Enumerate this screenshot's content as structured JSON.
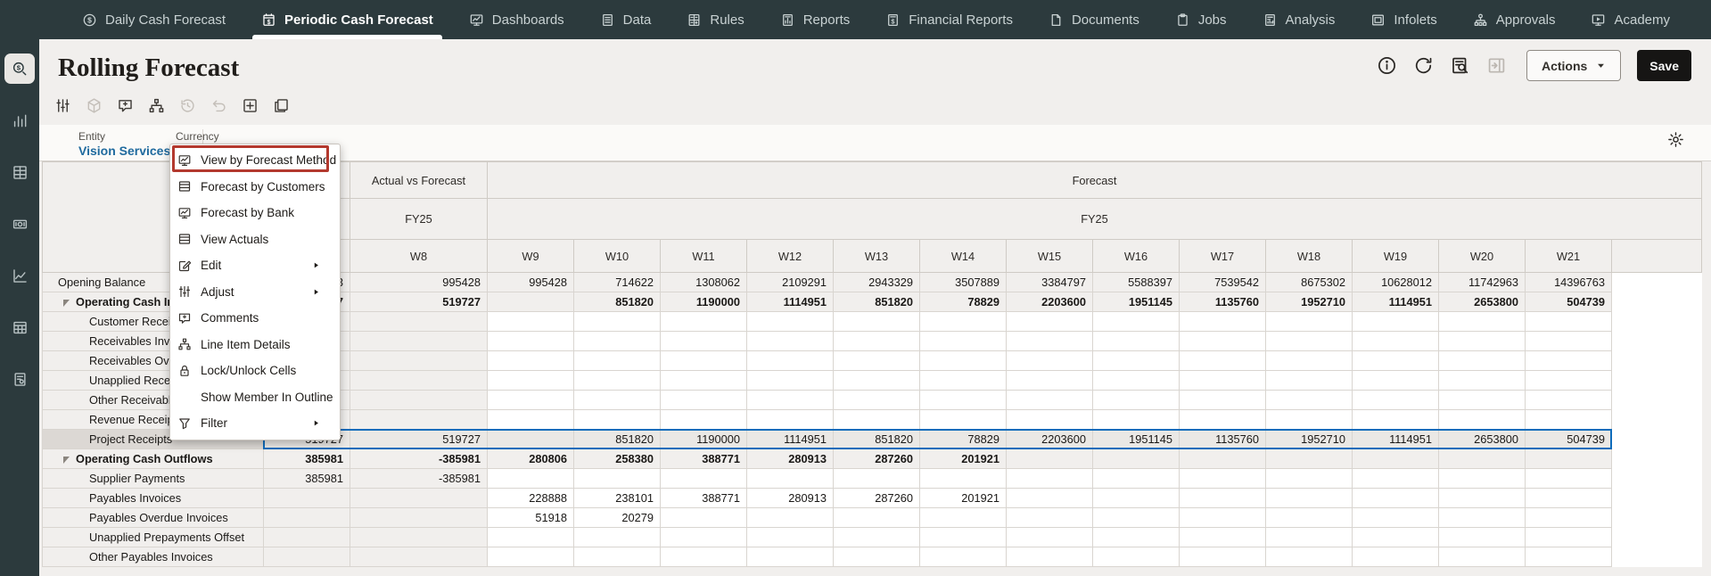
{
  "nav": {
    "items": [
      {
        "label": "Daily Cash Forecast",
        "icon": "daily-cash-icon",
        "active": false
      },
      {
        "label": "Periodic Cash Forecast",
        "icon": "periodic-cash-icon",
        "active": true
      },
      {
        "label": "Dashboards",
        "icon": "dashboards-icon",
        "active": false
      },
      {
        "label": "Data",
        "icon": "data-icon",
        "active": false
      },
      {
        "label": "Rules",
        "icon": "rules-icon",
        "active": false
      },
      {
        "label": "Reports",
        "icon": "reports-icon",
        "active": false
      },
      {
        "label": "Financial Reports",
        "icon": "financial-reports-icon",
        "active": false
      },
      {
        "label": "Documents",
        "icon": "documents-icon",
        "active": false
      },
      {
        "label": "Jobs",
        "icon": "jobs-icon",
        "active": false
      },
      {
        "label": "Analysis",
        "icon": "analysis-icon",
        "active": false
      },
      {
        "label": "Infolets",
        "icon": "infolets-icon",
        "active": false
      },
      {
        "label": "Approvals",
        "icon": "approvals-icon",
        "active": false
      },
      {
        "label": "Academy",
        "icon": "academy-icon",
        "active": false
      }
    ]
  },
  "sidebar": {
    "icons": [
      {
        "name": "cash-forecast-icon",
        "active": true
      },
      {
        "name": "bar-chart-icon",
        "active": false
      },
      {
        "name": "data-grid-icon",
        "active": false
      },
      {
        "name": "money-icon",
        "active": false
      },
      {
        "name": "trend-chart-icon",
        "active": false
      },
      {
        "name": "table-icon",
        "active": false
      },
      {
        "name": "report-doc-icon",
        "active": false
      }
    ]
  },
  "header": {
    "title": "Rolling Forecast",
    "actions_label": "Actions",
    "save_label": "Save",
    "icons": [
      {
        "name": "info-icon",
        "disabled": false
      },
      {
        "name": "refresh-icon",
        "disabled": false
      },
      {
        "name": "list-search-icon",
        "disabled": false
      },
      {
        "name": "collapse-panel-icon",
        "disabled": true
      }
    ]
  },
  "toolbar": {
    "icons": [
      {
        "name": "adjust-sliders-icon",
        "disabled": false
      },
      {
        "name": "cube-icon",
        "disabled": true
      },
      {
        "name": "comment-add-icon",
        "disabled": false
      },
      {
        "name": "hierarchy-icon",
        "disabled": false
      },
      {
        "name": "history-icon",
        "disabled": true
      },
      {
        "name": "undo-icon",
        "disabled": true
      },
      {
        "name": "grid-icon",
        "disabled": false
      },
      {
        "name": "layout-icon",
        "disabled": false
      }
    ]
  },
  "pov": {
    "entity_label": "Entity",
    "entity_value": "Vision Services",
    "currency_label": "Currency"
  },
  "context_menu": {
    "items": [
      {
        "label": "View by Forecast Method",
        "icon": "monitor-chart-icon",
        "submenu": false,
        "highlighted": true
      },
      {
        "label": "Forecast by Customers",
        "icon": "table-grid-icon",
        "submenu": false,
        "highlighted": false
      },
      {
        "label": "Forecast by Bank",
        "icon": "monitor-chart-icon",
        "submenu": false,
        "highlighted": false
      },
      {
        "label": "View Actuals",
        "icon": "table-grid-icon",
        "submenu": false,
        "highlighted": false
      },
      {
        "label": "Edit",
        "icon": "pencil-icon",
        "submenu": true,
        "highlighted": false
      },
      {
        "label": "Adjust",
        "icon": "adjust-sliders-icon",
        "submenu": true,
        "highlighted": false
      },
      {
        "label": "Comments",
        "icon": "comment-add-icon",
        "submenu": false,
        "highlighted": false
      },
      {
        "label": "Line Item Details",
        "icon": "hierarchy-icon",
        "submenu": false,
        "highlighted": false
      },
      {
        "label": "Lock/Unlock Cells",
        "icon": "lock-icon",
        "submenu": false,
        "highlighted": false
      },
      {
        "label": "Show Member In Outline",
        "icon": "",
        "submenu": false,
        "highlighted": false
      },
      {
        "label": "Filter",
        "icon": "funnel-icon",
        "submenu": true,
        "highlighted": false
      }
    ]
  },
  "grid": {
    "scenario_actual_vs_forecast": "Actual vs Forecast",
    "scenario_forecast": "Forecast",
    "year_actual": "FY25",
    "year_forecast": "FY25",
    "weeks": [
      "W8",
      "W9",
      "W10",
      "W11",
      "W12",
      "W13",
      "W14",
      "W15",
      "W16",
      "W17",
      "W18",
      "W19",
      "W20",
      "W21"
    ],
    "rows": [
      {
        "label": "Opening Balance",
        "level": 0,
        "bold": false,
        "computed": true,
        "expanded": false,
        "selected": false,
        "cells": [
          "3",
          "995428",
          "995428",
          "714622",
          "1308062",
          "2109291",
          "2943329",
          "3507889",
          "3384797",
          "5588397",
          "7539542",
          "8675302",
          "10628012",
          "11742963",
          "14396763"
        ]
      },
      {
        "label": "Operating Cash Inflows",
        "level": 1,
        "bold": true,
        "computed": true,
        "expanded": true,
        "selected": false,
        "cells": [
          "7",
          "519727",
          "",
          "851820",
          "1190000",
          "1114951",
          "851820",
          "78829",
          "2203600",
          "1951145",
          "1135760",
          "1952710",
          "1114951",
          "2653800",
          "504739"
        ]
      },
      {
        "label": "Customer Receipts",
        "level": 2,
        "bold": false,
        "computed": false,
        "expanded": false,
        "selected": false,
        "cells": [
          "",
          "",
          "",
          "",
          "",
          "",
          "",
          "",
          "",
          "",
          "",
          "",
          "",
          "",
          ""
        ]
      },
      {
        "label": "Receivables Invoices",
        "level": 2,
        "bold": false,
        "computed": false,
        "expanded": false,
        "selected": false,
        "cells": [
          "",
          "",
          "",
          "",
          "",
          "",
          "",
          "",
          "",
          "",
          "",
          "",
          "",
          "",
          ""
        ]
      },
      {
        "label": "Receivables Overdue Invoices",
        "level": 2,
        "bold": false,
        "computed": false,
        "expanded": false,
        "selected": false,
        "cells": [
          "",
          "",
          "",
          "",
          "",
          "",
          "",
          "",
          "",
          "",
          "",
          "",
          "",
          "",
          ""
        ]
      },
      {
        "label": "Unapplied Receipts Offset",
        "level": 2,
        "bold": false,
        "computed": false,
        "expanded": false,
        "selected": false,
        "cells": [
          "",
          "",
          "",
          "",
          "",
          "",
          "",
          "",
          "",
          "",
          "",
          "",
          "",
          "",
          ""
        ]
      },
      {
        "label": "Other Receivables Invoices",
        "level": 2,
        "bold": false,
        "computed": false,
        "expanded": false,
        "selected": false,
        "cells": [
          "",
          "",
          "",
          "",
          "",
          "",
          "",
          "",
          "",
          "",
          "",
          "",
          "",
          "",
          ""
        ]
      },
      {
        "label": "Revenue Receipts",
        "level": 2,
        "bold": false,
        "computed": false,
        "expanded": false,
        "selected": false,
        "cells": [
          "",
          "",
          "",
          "",
          "",
          "",
          "",
          "",
          "",
          "",
          "",
          "",
          "",
          "",
          ""
        ]
      },
      {
        "label": "Project Receipts",
        "level": 2,
        "bold": false,
        "computed": false,
        "expanded": false,
        "selected": true,
        "cells": [
          "519727",
          "519727",
          "",
          "851820",
          "1190000",
          "1114951",
          "851820",
          "78829",
          "2203600",
          "1951145",
          "1135760",
          "1952710",
          "1114951",
          "2653800",
          "504739"
        ]
      },
      {
        "label": "Operating Cash Outflows",
        "level": 1,
        "bold": true,
        "computed": true,
        "expanded": true,
        "selected": false,
        "cells": [
          "385981",
          "-385981",
          "280806",
          "258380",
          "388771",
          "280913",
          "287260",
          "201921",
          "",
          "",
          "",
          "",
          "",
          "",
          ""
        ]
      },
      {
        "label": "Supplier Payments",
        "level": 2,
        "bold": false,
        "computed": false,
        "expanded": false,
        "selected": false,
        "cells": [
          "385981",
          "-385981",
          "",
          "",
          "",
          "",
          "",
          "",
          "",
          "",
          "",
          "",
          "",
          "",
          ""
        ]
      },
      {
        "label": "Payables Invoices",
        "level": 2,
        "bold": false,
        "computed": false,
        "expanded": false,
        "selected": false,
        "cells": [
          "",
          "",
          "228888",
          "238101",
          "388771",
          "280913",
          "287260",
          "201921",
          "",
          "",
          "",
          "",
          "",
          "",
          ""
        ]
      },
      {
        "label": "Payables Overdue Invoices",
        "level": 2,
        "bold": false,
        "computed": false,
        "expanded": false,
        "selected": false,
        "cells": [
          "",
          "",
          "51918",
          "20279",
          "",
          "",
          "",
          "",
          "",
          "",
          "",
          "",
          "",
          "",
          ""
        ]
      },
      {
        "label": "Unapplied Prepayments Offset",
        "level": 2,
        "bold": false,
        "computed": false,
        "expanded": false,
        "selected": false,
        "cells": [
          "",
          "",
          "",
          "",
          "",
          "",
          "",
          "",
          "",
          "",
          "",
          "",
          "",
          "",
          ""
        ]
      },
      {
        "label": "Other Payables Invoices",
        "level": 2,
        "bold": false,
        "computed": false,
        "expanded": false,
        "selected": false,
        "cells": [
          "",
          "",
          "",
          "",
          "",
          "",
          "",
          "",
          "",
          "",
          "",
          "",
          "",
          "",
          ""
        ]
      }
    ]
  },
  "colors": {
    "nav_bg": "#2c3a3d",
    "nav_text": "#c9d2d3",
    "page_bg": "#f1efed",
    "pov_bg": "#fbfaf8",
    "link_blue": "#1f6a9e",
    "selection_blue": "#0f6cbb",
    "annotation_red": "#b3392e",
    "save_bg": "#161514",
    "cell_bg_gray": "#f1efed",
    "cell_bg_selected": "#eae8e5",
    "border_gray": "#d9d5d0",
    "text_dark": "#1a1816"
  }
}
